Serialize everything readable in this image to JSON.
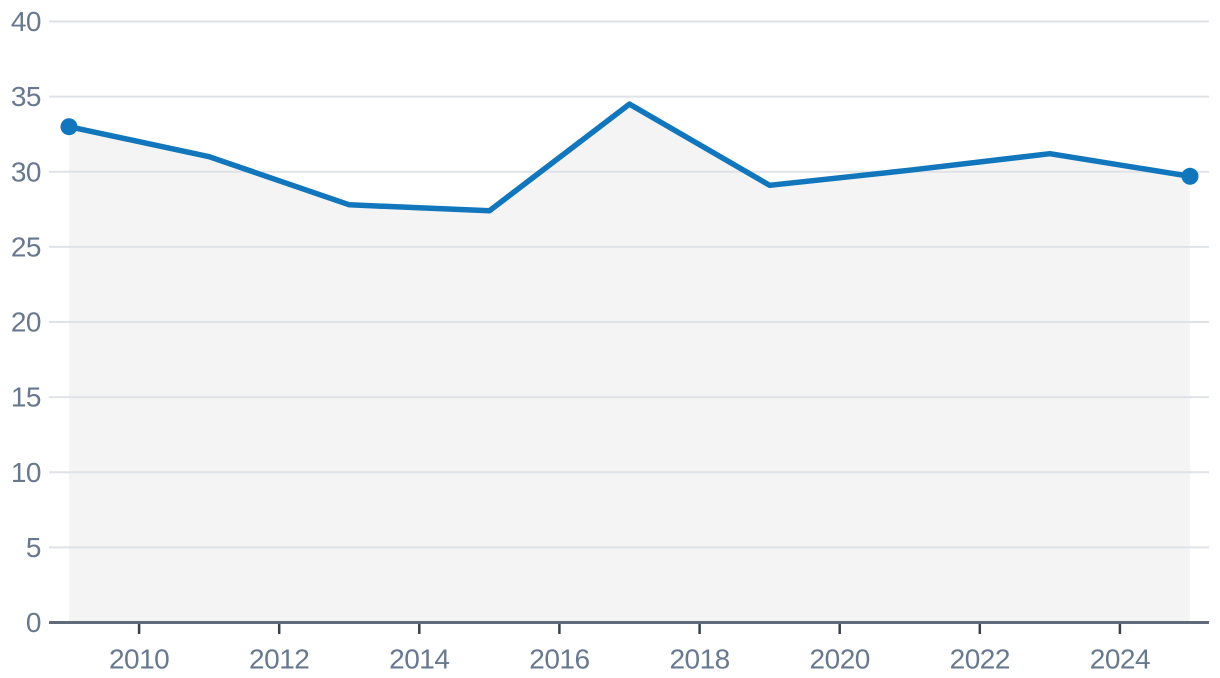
{
  "chart": {
    "line_color": "#1176bc",
    "marker_color": "#1176bc",
    "area_fill_color": "#f4f4f4",
    "gridline_color": "#dfe2e7",
    "axis_line_color": "#5f6b7b",
    "tick_mark_color": "#39414d",
    "label_color": "#68798f",
    "background_color": "#ffffff"
  },
  "chart_data": {
    "type": "line",
    "title": "",
    "xlabel": "",
    "ylabel": "",
    "x": [
      2009,
      2011,
      2013,
      2015,
      2017,
      2019,
      2021,
      2023,
      2025
    ],
    "y": [
      33,
      31,
      27.8,
      27.4,
      34.5,
      29.1,
      30.1,
      31.2,
      29.7
    ],
    "xlim": [
      2009,
      2025
    ],
    "ylim": [
      0,
      40
    ],
    "x_tick_labels": [
      "2010",
      "2012",
      "2014",
      "2016",
      "2018",
      "2020",
      "2022",
      "2024"
    ],
    "x_tick_values": [
      2010,
      2012,
      2014,
      2016,
      2018,
      2020,
      2022,
      2024
    ],
    "y_tick_labels": [
      "0",
      "5",
      "10",
      "15",
      "20",
      "25",
      "30",
      "35",
      "40"
    ],
    "y_tick_values": [
      0,
      5,
      10,
      15,
      20,
      25,
      30,
      35,
      40
    ],
    "grid": "horizontal",
    "legend": "none",
    "area_fill": true,
    "markers": "endpoints-only"
  }
}
